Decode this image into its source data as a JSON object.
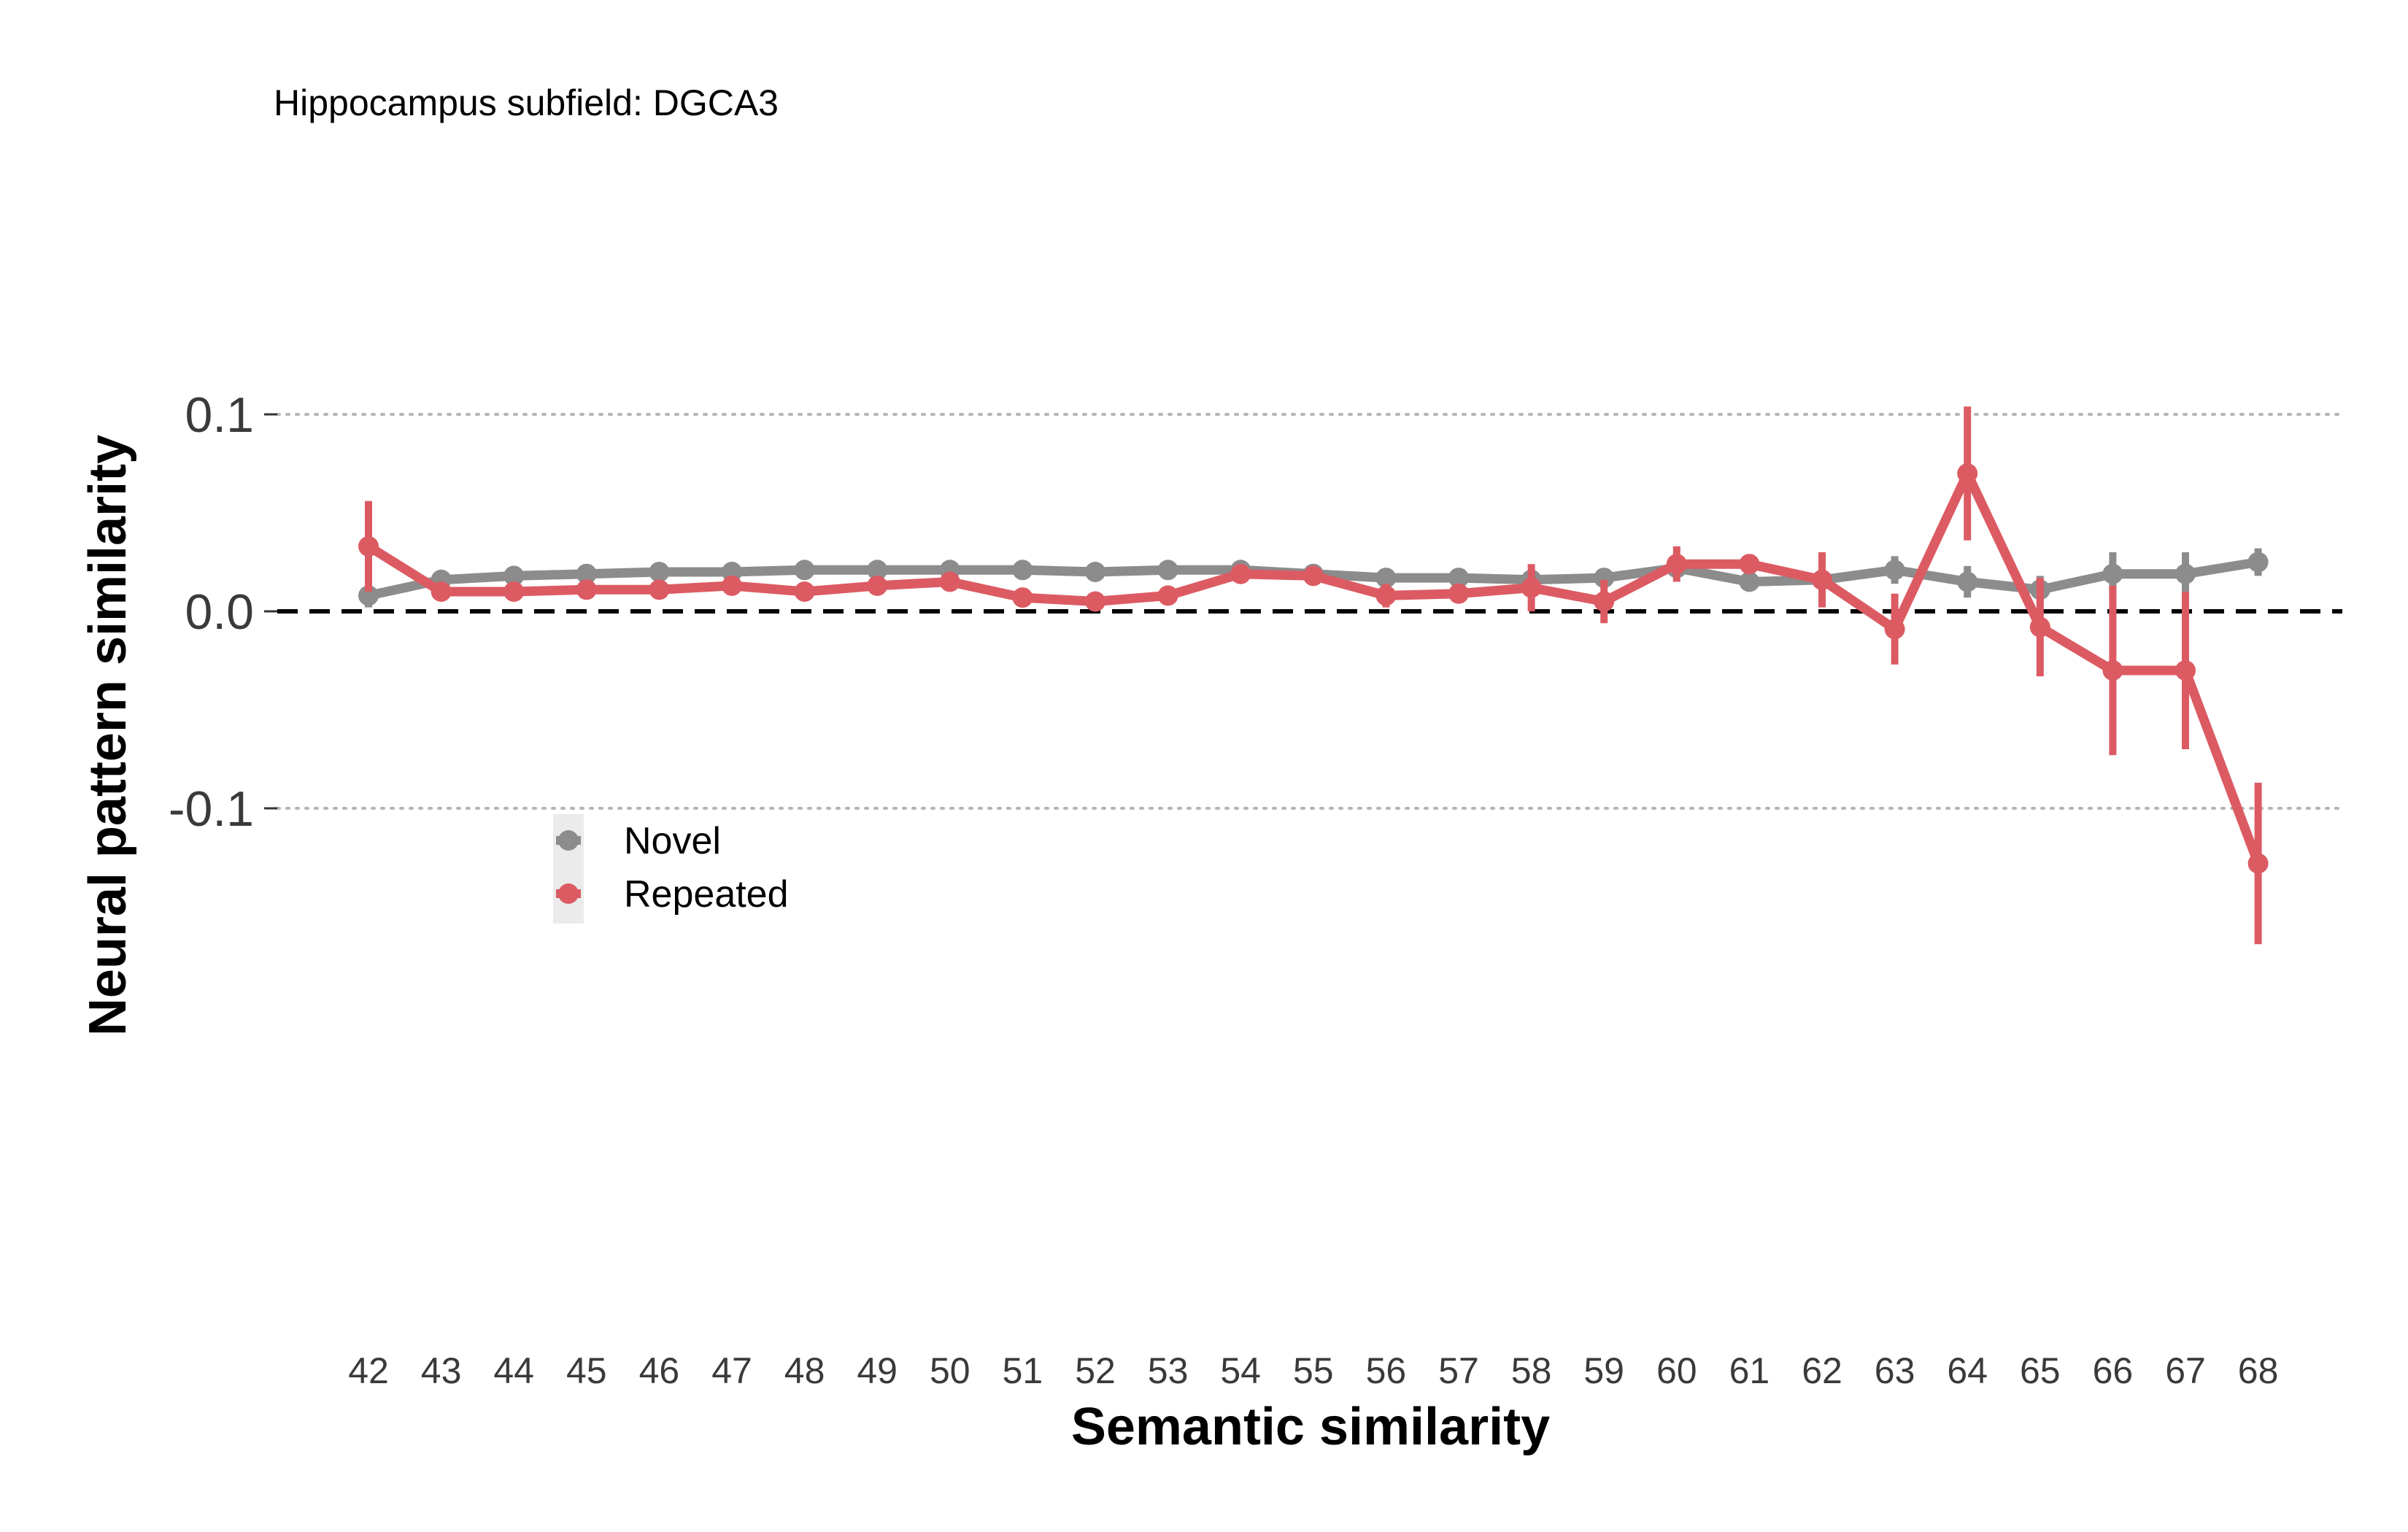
{
  "chart_data": {
    "type": "line",
    "subtitle": "Hippocampus subfield: DGCA3",
    "xlabel": "Semantic similarity",
    "ylabel": "Neural pattern similarity",
    "x": [
      42,
      43,
      44,
      45,
      46,
      47,
      48,
      49,
      50,
      51,
      52,
      53,
      54,
      55,
      56,
      57,
      58,
      59,
      60,
      61,
      62,
      63,
      64,
      65,
      66,
      67,
      68
    ],
    "x_tick_labels": [
      "42",
      "43",
      "44",
      "45",
      "46",
      "47",
      "48",
      "49",
      "50",
      "51",
      "52",
      "53",
      "54",
      "55",
      "56",
      "57",
      "58",
      "59",
      "60",
      "61",
      "62",
      "63",
      "64",
      "65",
      "66",
      "67",
      "68"
    ],
    "y_ticks": [
      0.1,
      0.0,
      -0.1
    ],
    "y_tick_labels": [
      "0.1",
      "0.0",
      "-0.1"
    ],
    "ylim": [
      -0.18,
      0.12
    ],
    "reference_line": {
      "y": 0.0,
      "style": "dashed",
      "color": "#000000"
    },
    "grid": "horizontal dotted at y ticks",
    "legend_position": "left-middle",
    "series": [
      {
        "name": "Novel",
        "color": "#8c8c8c",
        "values": [
          0.008,
          0.016,
          0.018,
          0.019,
          0.02,
          0.02,
          0.021,
          0.021,
          0.021,
          0.021,
          0.02,
          0.021,
          0.021,
          0.019,
          0.017,
          0.017,
          0.016,
          0.017,
          0.022,
          0.015,
          0.016,
          0.021,
          0.015,
          0.011,
          0.019,
          0.019,
          0.025
        ],
        "error": [
          0.006,
          0.003,
          0.003,
          0.003,
          0.003,
          0.003,
          0.003,
          0.003,
          0.003,
          0.004,
          0.003,
          0.003,
          0.003,
          0.003,
          0.003,
          0.003,
          0.003,
          0.004,
          0.004,
          0.004,
          0.005,
          0.007,
          0.008,
          0.007,
          0.011,
          0.011,
          0.007
        ]
      },
      {
        "name": "Repeated",
        "color": "#dc5b63",
        "values": [
          0.033,
          0.01,
          0.01,
          0.011,
          0.011,
          0.013,
          0.01,
          0.013,
          0.015,
          0.007,
          0.005,
          0.008,
          0.019,
          0.018,
          0.008,
          0.009,
          0.012,
          0.005,
          0.024,
          0.024,
          0.016,
          -0.009,
          0.07,
          -0.008,
          -0.03,
          -0.03,
          -0.128
        ],
        "error": [
          0.023,
          0.002,
          0.002,
          0.002,
          0.002,
          0.002,
          0.003,
          0.002,
          0.002,
          0.002,
          0.002,
          0.002,
          0.003,
          0.004,
          0.006,
          0.003,
          0.012,
          0.011,
          0.009,
          0.005,
          0.014,
          0.018,
          0.034,
          0.025,
          0.043,
          0.04,
          0.041
        ]
      }
    ]
  }
}
